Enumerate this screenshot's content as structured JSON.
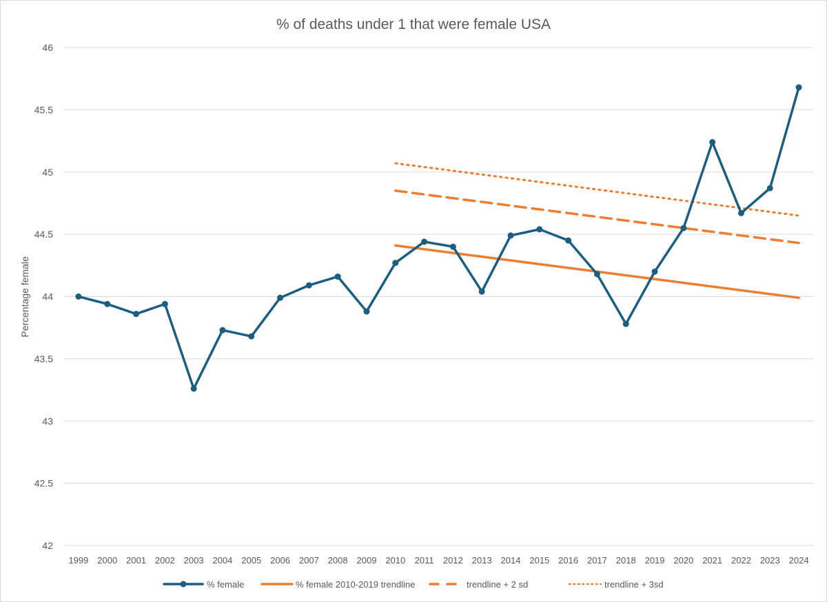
{
  "chart_data": {
    "type": "line",
    "title": "% of deaths under 1 that were female USA",
    "xlabel": "",
    "ylabel": "Percentage female",
    "ylim": [
      42,
      46
    ],
    "yticks": [
      42,
      42.5,
      43,
      43.5,
      44,
      44.5,
      45,
      45.5,
      46
    ],
    "ytick_labels": [
      "42",
      "42.5",
      "43",
      "43.5",
      "44",
      "44.5",
      "45",
      "45.5",
      "46"
    ],
    "grid": true,
    "legend_position": "bottom",
    "categories": [
      "1999",
      "2000",
      "2001",
      "2002",
      "2003",
      "2004",
      "2005",
      "2006",
      "2007",
      "2008",
      "2009",
      "2010",
      "2011",
      "2012",
      "2013",
      "2014",
      "2015",
      "2016",
      "2017",
      "2018",
      "2019",
      "2020",
      "2021",
      "2022",
      "2023",
      "2024"
    ],
    "series": [
      {
        "name": "% female",
        "style": "solid-markers",
        "color": "#1b5e82",
        "values": [
          44.0,
          43.94,
          43.86,
          43.94,
          43.26,
          43.73,
          43.68,
          43.99,
          44.09,
          44.16,
          43.88,
          44.27,
          44.44,
          44.4,
          44.04,
          44.49,
          44.54,
          44.45,
          44.18,
          43.78,
          44.2,
          44.55,
          45.24,
          44.67,
          44.87,
          45.68
        ]
      },
      {
        "name": "% female 2010-2019 trendline",
        "style": "solid",
        "color": "#ed7d31",
        "x_range": [
          "2010",
          "2024"
        ],
        "values": [
          44.41,
          43.99
        ]
      },
      {
        "name": "trendline + 2 sd",
        "style": "dashed",
        "color": "#ed7d31",
        "x_range": [
          "2010",
          "2024"
        ],
        "values": [
          44.85,
          44.43
        ]
      },
      {
        "name": "trendline + 3sd",
        "style": "dotted",
        "color": "#ed7d31",
        "x_range": [
          "2010",
          "2024"
        ],
        "values": [
          45.07,
          44.65
        ]
      }
    ]
  }
}
